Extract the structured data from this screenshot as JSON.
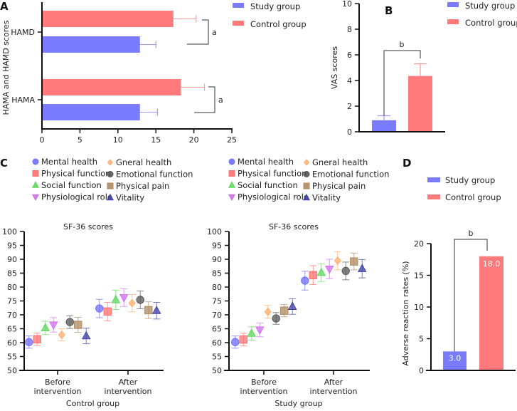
{
  "colors": {
    "study": "#7B7BFF",
    "control": "#FF7B7B",
    "study_err": "#9A9AFF",
    "control_err": "#FF9A9A"
  },
  "legend": {
    "study": "Study group",
    "control": "Control group"
  },
  "chart_data": [
    {
      "panel": "A",
      "type": "bar",
      "orientation": "horizontal",
      "ylabel": "HAMA and HAMD scores",
      "xlabel": "",
      "categories": [
        "HAMD",
        "HAMA"
      ],
      "xlim": [
        0,
        25
      ],
      "xticks": [
        0,
        5,
        10,
        15,
        20,
        25
      ],
      "series": [
        {
          "name": "Control group",
          "key": "control",
          "values": [
            17.3,
            18.3
          ],
          "errors": [
            3.0,
            3.1
          ]
        },
        {
          "name": "Study group",
          "key": "study",
          "values": [
            12.9,
            12.9
          ],
          "errors": [
            2.1,
            2.3
          ]
        }
      ],
      "annotations": [
        "a",
        "a"
      ],
      "legend": "top-right"
    },
    {
      "panel": "B",
      "type": "bar",
      "ylabel": "VAS scores",
      "xlabel": "",
      "ylim": [
        0,
        10
      ],
      "yticks": [
        0,
        2,
        4,
        6,
        8,
        10
      ],
      "series": [
        {
          "name": "Study group",
          "key": "study",
          "value": 0.9,
          "error": 0.35
        },
        {
          "name": "Control group",
          "key": "control",
          "value": 4.35,
          "error": 0.95
        }
      ],
      "annotation": "b",
      "legend": "top-right"
    },
    {
      "panel": "C",
      "type": "scatter",
      "title": "SF-36 scores",
      "xlabel": "Control group",
      "ylim": [
        50,
        100
      ],
      "yticks": [
        50,
        55,
        60,
        65,
        70,
        75,
        80,
        85,
        90,
        95,
        100
      ],
      "categories": [
        "Before intervention",
        "After intervention"
      ],
      "series": [
        {
          "name": "Mental health",
          "marker": "circle",
          "color": "#6F6FFF",
          "values": [
            60.2,
            72.3
          ],
          "errors": [
            2.2,
            3.3
          ]
        },
        {
          "name": "Physical function",
          "marker": "square",
          "color": "#FF6F6F",
          "values": [
            61.2,
            71.2
          ],
          "errors": [
            2.2,
            3.3
          ]
        },
        {
          "name": "Social function",
          "marker": "triangle-up",
          "color": "#5FD85F",
          "values": [
            65.3,
            75.4
          ],
          "errors": [
            2.4,
            3.5
          ]
        },
        {
          "name": "Physiological role",
          "marker": "triangle-down",
          "color": "#D070F0",
          "values": [
            66.4,
            76.2
          ],
          "errors": [
            2.6,
            3.2
          ]
        },
        {
          "name": "Gneral health",
          "marker": "diamond",
          "color": "#FFAF6F",
          "values": [
            62.8,
            74.2
          ],
          "errors": [
            2.2,
            3.1
          ]
        },
        {
          "name": "Emotional function",
          "marker": "circle",
          "color": "#555555",
          "values": [
            67.4,
            75.4
          ],
          "errors": [
            2.3,
            3.2
          ]
        },
        {
          "name": "Physical pain",
          "marker": "square",
          "color": "#B08A5F",
          "values": [
            66.4,
            71.7
          ],
          "errors": [
            2.7,
            3.0
          ]
        },
        {
          "name": "Vitality",
          "marker": "triangle-up",
          "color": "#3F3FA8",
          "values": [
            62.4,
            71.5
          ],
          "errors": [
            2.8,
            3.0
          ]
        }
      ]
    },
    {
      "panel": "C2",
      "type": "scatter",
      "title": "SF-36 scores",
      "xlabel": "Study group",
      "ylim": [
        50,
        100
      ],
      "yticks": [
        50,
        55,
        60,
        65,
        70,
        75,
        80,
        85,
        90,
        95,
        100
      ],
      "categories": [
        "Before intervention",
        "After intervention"
      ],
      "series": [
        {
          "name": "Mental health",
          "marker": "circle",
          "color": "#6F6FFF",
          "values": [
            60.2,
            82.3
          ],
          "errors": [
            2.2,
            3.4
          ]
        },
        {
          "name": "Physical function",
          "marker": "square",
          "color": "#FF6F6F",
          "values": [
            61.1,
            84.3
          ],
          "errors": [
            2.3,
            3.4
          ]
        },
        {
          "name": "Social function",
          "marker": "triangle-up",
          "color": "#5FD85F",
          "values": [
            63.3,
            85.2
          ],
          "errors": [
            2.4,
            3.2
          ]
        },
        {
          "name": "Physiological role",
          "marker": "triangle-down",
          "color": "#D070F0",
          "values": [
            64.6,
            86.5
          ],
          "errors": [
            2.5,
            3.5
          ]
        },
        {
          "name": "Gneral health",
          "marker": "diamond",
          "color": "#FFAF6F",
          "values": [
            71.1,
            89.5
          ],
          "errors": [
            2.3,
            3.3
          ]
        },
        {
          "name": "Emotional function",
          "marker": "circle",
          "color": "#555555",
          "values": [
            68.7,
            85.8
          ],
          "errors": [
            2.1,
            3.2
          ]
        },
        {
          "name": "Physical pain",
          "marker": "square",
          "color": "#B08A5F",
          "values": [
            71.5,
            89.2
          ],
          "errors": [
            2.2,
            3.0
          ]
        },
        {
          "name": "Vitality",
          "marker": "triangle-up",
          "color": "#3F3FA8",
          "values": [
            73.0,
            86.6
          ],
          "errors": [
            2.8,
            3.3
          ]
        }
      ]
    },
    {
      "panel": "D",
      "type": "bar",
      "ylabel": "Adverse reaction rates (%)",
      "xlabel": "",
      "ylim": [
        0,
        20
      ],
      "yticks": [
        0,
        5,
        10,
        15,
        20
      ],
      "series": [
        {
          "name": "Study group",
          "key": "study",
          "value": 3.0,
          "label": "3.0"
        },
        {
          "name": "Control group",
          "key": "control",
          "value": 18.0,
          "label": "18.0"
        }
      ],
      "annotation": "b",
      "legend": "top"
    }
  ],
  "panel_labels": {
    "A": "A",
    "B": "B",
    "C": "C",
    "D": "D"
  }
}
